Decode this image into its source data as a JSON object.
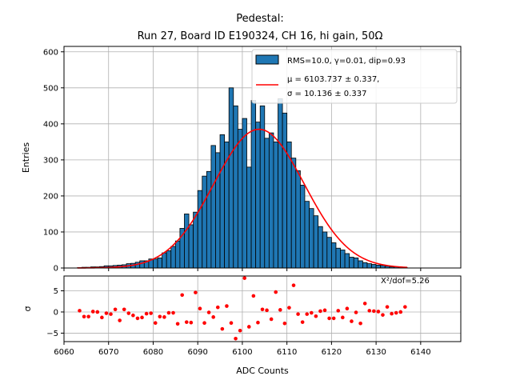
{
  "chart_data": {
    "type": "bar",
    "title": [
      "Pedestal:",
      "Run 27, Board ID E190324, CH 16, hi gain, 50Ω"
    ],
    "xlabel": "ADC Counts",
    "ylabel_top": "Entries",
    "ylabel_bottom": "σ",
    "xlim": [
      6060,
      6149
    ],
    "ylim_top": [
      0,
      615
    ],
    "ylim_bottom": [
      -7,
      8.5
    ],
    "xticks": [
      6060,
      6070,
      6080,
      6090,
      6100,
      6110,
      6120,
      6130,
      6140
    ],
    "yticks_top": [
      0,
      100,
      200,
      300,
      400,
      500,
      600
    ],
    "yticks_bottom": [
      -5,
      0,
      5
    ],
    "grid": true,
    "legend_position": "top-right",
    "legend": [
      {
        "label": "RMS=10.0, γ=0.01, dip=0.93",
        "type": "patch",
        "color": "#1f77b4"
      },
      {
        "label": [
          "μ = 6103.737 ± 0.337,",
          "σ = 10.136 ± 0.337"
        ],
        "type": "line",
        "color": "#ff0000"
      }
    ],
    "annotation": "X²/dof=5.26",
    "colors": {
      "bars": "#1f77b4",
      "edge": "#000000",
      "fit": "#ff0000",
      "residuals": "#ff0000",
      "grid": "#b0b0b0"
    },
    "histogram": {
      "bin_width": 1,
      "bin_left_edges": [
        6063,
        6064,
        6065,
        6066,
        6067,
        6068,
        6069,
        6070,
        6071,
        6072,
        6073,
        6074,
        6075,
        6076,
        6077,
        6078,
        6079,
        6080,
        6081,
        6082,
        6083,
        6084,
        6085,
        6086,
        6087,
        6088,
        6089,
        6090,
        6091,
        6092,
        6093,
        6094,
        6095,
        6096,
        6097,
        6098,
        6099,
        6100,
        6101,
        6102,
        6103,
        6104,
        6105,
        6106,
        6107,
        6108,
        6109,
        6110,
        6111,
        6112,
        6113,
        6114,
        6115,
        6116,
        6117,
        6118,
        6119,
        6120,
        6121,
        6122,
        6123,
        6124,
        6125,
        6126,
        6127,
        6128,
        6129,
        6130,
        6131,
        6132,
        6133,
        6134,
        6135,
        6136
      ],
      "counts": [
        1,
        2,
        2,
        3,
        3,
        4,
        6,
        6,
        7,
        8,
        9,
        12,
        13,
        16,
        20,
        20,
        25,
        25,
        28,
        42,
        48,
        60,
        75,
        110,
        150,
        120,
        155,
        215,
        255,
        268,
        340,
        320,
        370,
        350,
        500,
        450,
        385,
        415,
        280,
        465,
        405,
        450,
        360,
        375,
        350,
        470,
        430,
        350,
        305,
        270,
        230,
        185,
        165,
        145,
        115,
        100,
        85,
        70,
        55,
        50,
        40,
        30,
        28,
        20,
        15,
        12,
        10,
        8,
        7,
        5,
        3,
        3,
        2,
        1
      ]
    },
    "fit": {
      "mu": 6103.737,
      "sigma": 10.136,
      "amplitude": 385,
      "x_range": [
        6063,
        6137
      ]
    },
    "residuals": {
      "x": [
        6063.5,
        6064.5,
        6065.5,
        6066.5,
        6067.5,
        6068.5,
        6069.5,
        6070.5,
        6071.5,
        6072.5,
        6073.5,
        6074.5,
        6075.5,
        6076.5,
        6077.5,
        6078.5,
        6079.5,
        6080.5,
        6081.5,
        6082.5,
        6083.5,
        6084.5,
        6085.5,
        6086.5,
        6087.5,
        6088.5,
        6089.5,
        6090.5,
        6091.5,
        6092.5,
        6093.5,
        6094.5,
        6095.5,
        6096.5,
        6097.5,
        6098.5,
        6099.5,
        6100.5,
        6101.5,
        6102.5,
        6103.5,
        6104.5,
        6105.5,
        6106.5,
        6107.5,
        6108.5,
        6109.5,
        6110.5,
        6111.5,
        6112.5,
        6113.5,
        6114.5,
        6115.5,
        6116.5,
        6117.5,
        6118.5,
        6119.5,
        6120.5,
        6121.5,
        6122.5,
        6123.5,
        6124.5,
        6125.5,
        6126.5,
        6127.5,
        6128.5,
        6129.5,
        6130.5,
        6131.5,
        6132.5,
        6133.5,
        6134.5,
        6135.5,
        6136.5
      ],
      "y": [
        0.3,
        -1.1,
        -1.1,
        0.1,
        0.0,
        -1.3,
        -0.3,
        -0.5,
        0.6,
        -2.0,
        0.6,
        -0.3,
        -0.8,
        -1.5,
        -1.3,
        -0.4,
        -0.3,
        -2.6,
        -1.1,
        -1.2,
        -0.2,
        -0.2,
        -2.8,
        4.0,
        -2.4,
        -2.5,
        4.6,
        0.8,
        -2.6,
        -0.1,
        -1.2,
        1.1,
        -4.0,
        1.4,
        -2.6,
        -6.3,
        -4.4,
        8.0,
        -3.5,
        3.8,
        -2.5,
        0.6,
        0.4,
        -1.7,
        4.7,
        0.5,
        -2.7,
        1.0,
        6.3,
        -0.5,
        -2.4,
        -0.5,
        -0.2,
        -1.0,
        0.2,
        0.4,
        -1.5,
        -1.5,
        0.3,
        -1.3,
        0.8,
        -2.2,
        -0.1,
        -2.7,
        2.0,
        0.3,
        0.2,
        0.1,
        -0.7,
        1.2,
        -0.4,
        -0.2,
        0.0,
        1.2
      ]
    }
  }
}
